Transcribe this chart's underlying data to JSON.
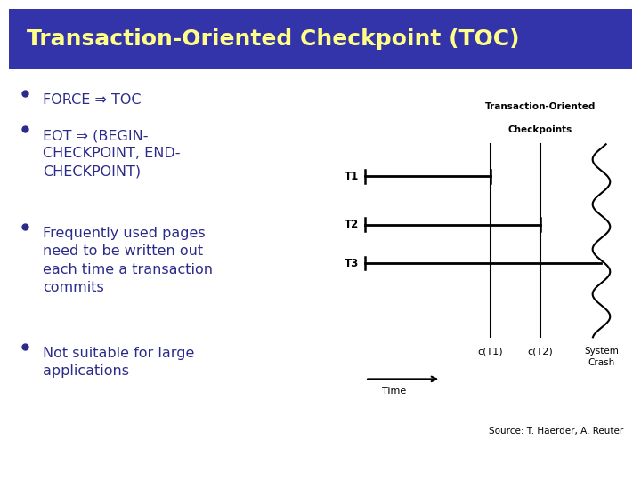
{
  "title": "Transaction-Oriented Checkpoint (TOC)",
  "title_color": "#FFFF88",
  "title_bg_color": "#3333AA",
  "bg_color": "#FFFFFF",
  "bullet_color": "#2B2B8B",
  "bullets": [
    "FORCE ⇒ TOC",
    "EOT ⇒ (BEGIN-\nCHECKPOINT, END-\nCHECKPOINT)",
    "Frequently used pages\nneed to be written out\neach time a transaction\ncommits",
    "Not suitable for large\napplications"
  ],
  "source_text": "Source: T. Haerder, A. Reuter",
  "diagram_title_line1": "Transaction-Oriented",
  "diagram_title_line2": "Checkpoints",
  "transactions": [
    "T1",
    "T2",
    "T3"
  ],
  "checkpoints": [
    "c(T1)",
    "c(T2)"
  ],
  "system_crash_label": "System\nCrash",
  "time_label": "Time"
}
